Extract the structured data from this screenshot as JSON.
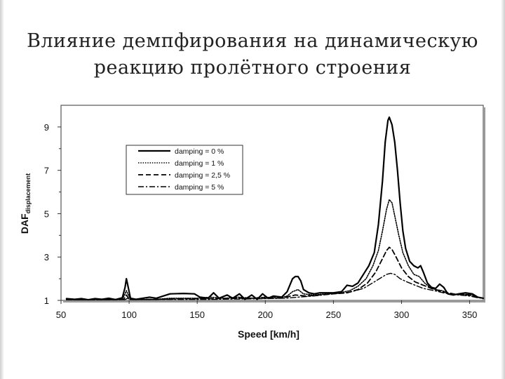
{
  "slide": {
    "title_line1": "Влияние демпфирования на динамическую",
    "title_line2": "реакцию пролётного строения"
  },
  "chart_data": {
    "type": "line",
    "xlabel": "Speed [km/h]",
    "ylabel_main": "DAF",
    "ylabel_sub": "displacement",
    "xlim": [
      50,
      360
    ],
    "ylim": [
      1,
      10
    ],
    "x_ticks": [
      50,
      100,
      150,
      200,
      250,
      300,
      350
    ],
    "y_ticks": [
      1,
      3,
      5,
      7,
      9
    ],
    "grid": false,
    "legend_position": "upper-left",
    "series": [
      {
        "name": "damping = 0 %",
        "style": "solid",
        "points": [
          [
            54,
            1.08
          ],
          [
            60,
            1.05
          ],
          [
            65,
            1.08
          ],
          [
            70,
            1.03
          ],
          [
            75,
            1.08
          ],
          [
            80,
            1.05
          ],
          [
            85,
            1.1
          ],
          [
            90,
            1.04
          ],
          [
            95,
            1.12
          ],
          [
            97,
            1.6
          ],
          [
            98,
            2.0
          ],
          [
            99,
            1.7
          ],
          [
            101,
            1.1
          ],
          [
            105,
            1.05
          ],
          [
            110,
            1.1
          ],
          [
            115,
            1.15
          ],
          [
            120,
            1.1
          ],
          [
            125,
            1.2
          ],
          [
            130,
            1.3
          ],
          [
            140,
            1.32
          ],
          [
            148,
            1.3
          ],
          [
            152,
            1.15
          ],
          [
            158,
            1.1
          ],
          [
            162,
            1.35
          ],
          [
            166,
            1.1
          ],
          [
            172,
            1.25
          ],
          [
            176,
            1.1
          ],
          [
            181,
            1.3
          ],
          [
            185,
            1.05
          ],
          [
            190,
            1.25
          ],
          [
            194,
            1.05
          ],
          [
            198,
            1.3
          ],
          [
            202,
            1.1
          ],
          [
            206,
            1.2
          ],
          [
            212,
            1.15
          ],
          [
            216,
            1.4
          ],
          [
            220,
            2.0
          ],
          [
            222,
            2.1
          ],
          [
            224,
            2.1
          ],
          [
            226,
            1.9
          ],
          [
            228,
            1.5
          ],
          [
            232,
            1.35
          ],
          [
            236,
            1.3
          ],
          [
            240,
            1.35
          ],
          [
            250,
            1.35
          ],
          [
            256,
            1.4
          ],
          [
            260,
            1.7
          ],
          [
            264,
            1.65
          ],
          [
            268,
            1.8
          ],
          [
            272,
            2.2
          ],
          [
            276,
            2.6
          ],
          [
            280,
            3.2
          ],
          [
            283,
            4.5
          ],
          [
            286,
            6.5
          ],
          [
            288,
            8.3
          ],
          [
            290,
            9.3
          ],
          [
            291,
            9.45
          ],
          [
            293,
            9.1
          ],
          [
            295,
            8.3
          ],
          [
            297,
            7.0
          ],
          [
            299,
            5.5
          ],
          [
            301,
            4.2
          ],
          [
            303,
            3.4
          ],
          [
            306,
            2.8
          ],
          [
            309,
            2.6
          ],
          [
            312,
            2.5
          ],
          [
            314,
            2.6
          ],
          [
            316,
            2.3
          ],
          [
            319,
            1.8
          ],
          [
            322,
            1.6
          ],
          [
            325,
            1.55
          ],
          [
            328,
            1.75
          ],
          [
            331,
            1.6
          ],
          [
            334,
            1.3
          ],
          [
            338,
            1.25
          ],
          [
            342,
            1.3
          ],
          [
            347,
            1.35
          ],
          [
            352,
            1.3
          ],
          [
            356,
            1.15
          ],
          [
            360,
            1.1
          ]
        ]
      },
      {
        "name": "damping = 1 %",
        "style": "dotted",
        "points": [
          [
            54,
            1.05
          ],
          [
            60,
            1.03
          ],
          [
            70,
            1.03
          ],
          [
            80,
            1.04
          ],
          [
            90,
            1.04
          ],
          [
            95,
            1.06
          ],
          [
            97,
            1.3
          ],
          [
            98,
            1.45
          ],
          [
            99,
            1.3
          ],
          [
            101,
            1.05
          ],
          [
            110,
            1.05
          ],
          [
            120,
            1.05
          ],
          [
            130,
            1.1
          ],
          [
            140,
            1.1
          ],
          [
            150,
            1.1
          ],
          [
            160,
            1.15
          ],
          [
            170,
            1.1
          ],
          [
            180,
            1.15
          ],
          [
            190,
            1.1
          ],
          [
            200,
            1.15
          ],
          [
            210,
            1.1
          ],
          [
            216,
            1.2
          ],
          [
            220,
            1.4
          ],
          [
            224,
            1.5
          ],
          [
            228,
            1.3
          ],
          [
            235,
            1.25
          ],
          [
            245,
            1.3
          ],
          [
            255,
            1.35
          ],
          [
            262,
            1.45
          ],
          [
            268,
            1.65
          ],
          [
            274,
            2.0
          ],
          [
            279,
            2.6
          ],
          [
            283,
            3.3
          ],
          [
            286,
            4.2
          ],
          [
            289,
            5.2
          ],
          [
            291,
            5.65
          ],
          [
            293,
            5.5
          ],
          [
            295,
            4.9
          ],
          [
            298,
            4.0
          ],
          [
            301,
            3.2
          ],
          [
            305,
            2.6
          ],
          [
            309,
            2.2
          ],
          [
            313,
            2.1
          ],
          [
            317,
            1.8
          ],
          [
            321,
            1.6
          ],
          [
            325,
            1.5
          ],
          [
            330,
            1.45
          ],
          [
            335,
            1.3
          ],
          [
            342,
            1.28
          ],
          [
            350,
            1.28
          ],
          [
            356,
            1.15
          ],
          [
            360,
            1.1
          ]
        ]
      },
      {
        "name": "damping = 2,5 %",
        "style": "dashed",
        "points": [
          [
            54,
            1.04
          ],
          [
            70,
            1.03
          ],
          [
            90,
            1.04
          ],
          [
            96,
            1.05
          ],
          [
            98,
            1.25
          ],
          [
            100,
            1.05
          ],
          [
            120,
            1.05
          ],
          [
            140,
            1.08
          ],
          [
            160,
            1.08
          ],
          [
            180,
            1.1
          ],
          [
            200,
            1.1
          ],
          [
            215,
            1.15
          ],
          [
            222,
            1.25
          ],
          [
            230,
            1.2
          ],
          [
            245,
            1.28
          ],
          [
            260,
            1.35
          ],
          [
            268,
            1.5
          ],
          [
            275,
            1.8
          ],
          [
            281,
            2.3
          ],
          [
            285,
            2.8
          ],
          [
            289,
            3.3
          ],
          [
            291,
            3.45
          ],
          [
            293,
            3.35
          ],
          [
            296,
            3.0
          ],
          [
            300,
            2.5
          ],
          [
            305,
            2.1
          ],
          [
            310,
            1.85
          ],
          [
            316,
            1.7
          ],
          [
            322,
            1.55
          ],
          [
            330,
            1.4
          ],
          [
            340,
            1.28
          ],
          [
            350,
            1.25
          ],
          [
            356,
            1.15
          ],
          [
            360,
            1.1
          ]
        ]
      },
      {
        "name": "damping = 5 %",
        "style": "dashdot",
        "points": [
          [
            54,
            1.03
          ],
          [
            80,
            1.03
          ],
          [
            97,
            1.04
          ],
          [
            99,
            1.1
          ],
          [
            101,
            1.04
          ],
          [
            130,
            1.05
          ],
          [
            160,
            1.05
          ],
          [
            190,
            1.07
          ],
          [
            215,
            1.1
          ],
          [
            224,
            1.15
          ],
          [
            235,
            1.2
          ],
          [
            250,
            1.3
          ],
          [
            262,
            1.38
          ],
          [
            272,
            1.55
          ],
          [
            280,
            1.85
          ],
          [
            285,
            2.05
          ],
          [
            289,
            2.2
          ],
          [
            292,
            2.25
          ],
          [
            295,
            2.2
          ],
          [
            299,
            2.0
          ],
          [
            304,
            1.85
          ],
          [
            310,
            1.7
          ],
          [
            316,
            1.55
          ],
          [
            324,
            1.45
          ],
          [
            332,
            1.33
          ],
          [
            342,
            1.25
          ],
          [
            350,
            1.2
          ],
          [
            356,
            1.12
          ],
          [
            360,
            1.1
          ]
        ]
      }
    ]
  }
}
